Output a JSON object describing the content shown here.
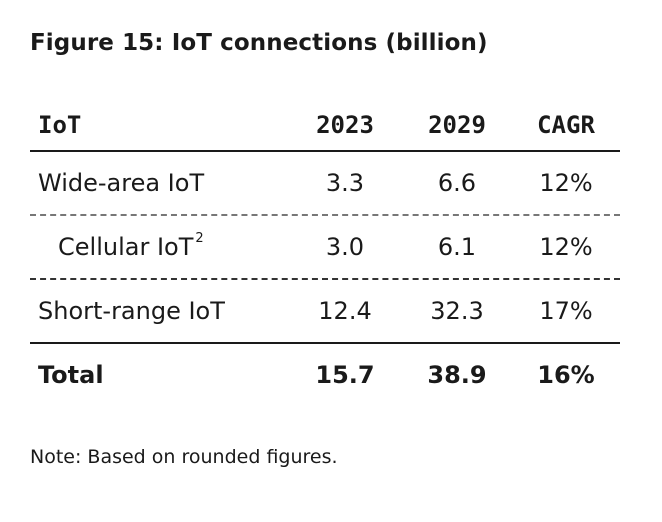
{
  "title": "Figure 15: IoT connections (billion)",
  "table": {
    "headers": {
      "label": "IoT",
      "y2023": "2023",
      "y2029": "2029",
      "cagr": "CAGR"
    },
    "rows": [
      {
        "label": "Wide-area IoT",
        "sup": "",
        "y2023": "3.3",
        "y2029": "6.6",
        "cagr": "12%"
      },
      {
        "label": "Cellular IoT",
        "sup": "2",
        "y2023": "3.0",
        "y2029": "6.1",
        "cagr": "12%"
      },
      {
        "label": "Short-range IoT",
        "sup": "",
        "y2023": "12.4",
        "y2029": "32.3",
        "cagr": "17%"
      }
    ],
    "total": {
      "label": "Total",
      "y2023": "15.7",
      "y2029": "38.9",
      "cagr": "16%"
    }
  },
  "note": "Note: Based on rounded figures."
}
